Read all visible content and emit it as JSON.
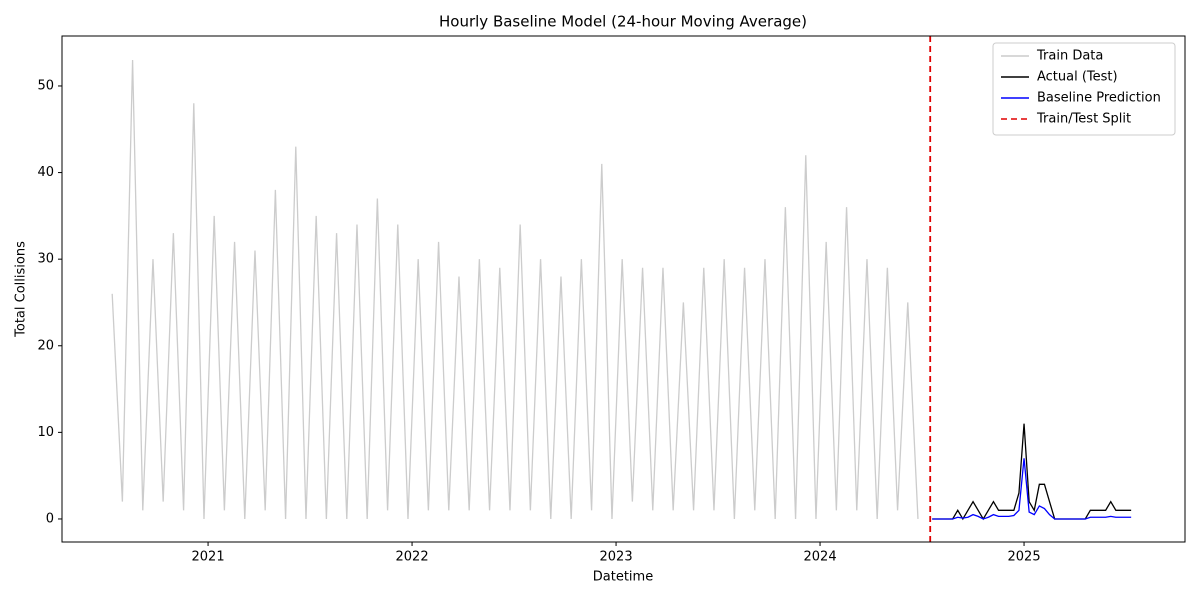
{
  "chart_data": {
    "type": "line",
    "title": "Hourly Baseline Model (24-hour Moving Average)",
    "x_label": "Datetime",
    "y_label": "Total Collisions",
    "xlim": [
      2020.284,
      2025.789
    ],
    "xticks": [
      2021,
      2022,
      2023,
      2024,
      2025
    ],
    "ylim": [
      -2.66,
      55.77
    ],
    "yticks": [
      0,
      10,
      20,
      30,
      40,
      50
    ],
    "grid": false,
    "legend": "upper right",
    "series": [
      {
        "name": "Train Data",
        "color": "#cccccc",
        "style": "solid",
        "x": [
          2020.53,
          2020.58,
          2020.63,
          2020.68,
          2020.73,
          2020.78,
          2020.83,
          2020.88,
          2020.93,
          2020.98,
          2021.03,
          2021.08,
          2021.13,
          2021.18,
          2021.23,
          2021.28,
          2021.33,
          2021.38,
          2021.43,
          2021.48,
          2021.53,
          2021.58,
          2021.63,
          2021.68,
          2021.73,
          2021.78,
          2021.83,
          2021.88,
          2021.93,
          2021.98,
          2022.03,
          2022.08,
          2022.13,
          2022.18,
          2022.23,
          2022.28,
          2022.33,
          2022.38,
          2022.43,
          2022.48,
          2022.53,
          2022.58,
          2022.63,
          2022.68,
          2022.73,
          2022.78,
          2022.83,
          2022.88,
          2022.93,
          2022.98,
          2023.03,
          2023.08,
          2023.13,
          2023.18,
          2023.23,
          2023.28,
          2023.33,
          2023.38,
          2023.43,
          2023.48,
          2023.53,
          2023.58,
          2023.63,
          2023.68,
          2023.73,
          2023.78,
          2023.83,
          2023.88,
          2023.93,
          2023.98,
          2024.03,
          2024.08,
          2024.13,
          2024.18,
          2024.23,
          2024.28,
          2024.33,
          2024.38,
          2024.43,
          2024.48
        ],
        "values": [
          26,
          2,
          53,
          1,
          30,
          2,
          33,
          1,
          48,
          0,
          35,
          1,
          32,
          0,
          31,
          1,
          38,
          0,
          43,
          0,
          35,
          0,
          33,
          0,
          34,
          0,
          37,
          1,
          34,
          0,
          30,
          1,
          32,
          1,
          28,
          1,
          30,
          1,
          29,
          1,
          34,
          1,
          30,
          0,
          28,
          0,
          30,
          1,
          41,
          0,
          30,
          2,
          29,
          1,
          29,
          1,
          25,
          1,
          29,
          1,
          30,
          0,
          29,
          1,
          30,
          0,
          36,
          0,
          42,
          0,
          32,
          1,
          36,
          1,
          30,
          0,
          29,
          1,
          25,
          0
        ]
      },
      {
        "name": "Actual (Test)",
        "color": "#000000",
        "style": "solid",
        "x": [
          2024.55,
          2024.575,
          2024.6,
          2024.625,
          2024.65,
          2024.675,
          2024.7,
          2024.725,
          2024.75,
          2024.775,
          2024.8,
          2024.825,
          2024.85,
          2024.875,
          2024.9,
          2024.925,
          2024.95,
          2024.975,
          2025.0,
          2025.025,
          2025.05,
          2025.075,
          2025.1,
          2025.125,
          2025.15,
          2025.175,
          2025.2,
          2025.225,
          2025.25,
          2025.275,
          2025.3,
          2025.325,
          2025.35,
          2025.375,
          2025.4,
          2025.425,
          2025.45,
          2025.475,
          2025.5,
          2025.525
        ],
        "values": [
          0,
          0,
          0,
          0,
          0,
          1,
          0,
          1,
          2,
          1,
          0,
          1,
          2,
          1,
          1,
          1,
          1,
          3,
          11,
          2,
          1,
          4,
          4,
          2,
          0,
          0,
          0,
          0,
          0,
          0,
          0,
          1,
          1,
          1,
          1,
          2,
          1,
          1,
          1,
          1
        ]
      },
      {
        "name": "Baseline Prediction",
        "color": "#0000ff",
        "style": "solid",
        "x": [
          2024.55,
          2024.575,
          2024.6,
          2024.625,
          2024.65,
          2024.675,
          2024.7,
          2024.725,
          2024.75,
          2024.775,
          2024.8,
          2024.825,
          2024.85,
          2024.875,
          2024.9,
          2024.925,
          2024.95,
          2024.975,
          2025.0,
          2025.025,
          2025.05,
          2025.075,
          2025.1,
          2025.125,
          2025.15,
          2025.175,
          2025.2,
          2025.225,
          2025.25,
          2025.275,
          2025.3,
          2025.325,
          2025.35,
          2025.375,
          2025.4,
          2025.425,
          2025.45,
          2025.475,
          2025.5,
          2025.525
        ],
        "values": [
          0,
          0,
          0,
          0,
          0,
          0.2,
          0.1,
          0.2,
          0.5,
          0.3,
          0,
          0.2,
          0.5,
          0.3,
          0.3,
          0.3,
          0.4,
          1,
          7,
          0.8,
          0.5,
          1.5,
          1.2,
          0.5,
          0,
          0,
          0,
          0,
          0,
          0,
          0,
          0.2,
          0.2,
          0.2,
          0.2,
          0.3,
          0.2,
          0.2,
          0.2,
          0.2
        ]
      }
    ],
    "vlines": [
      {
        "name": "Train/Test Split",
        "x": 2024.54,
        "color": "#e00000",
        "style": "dashed"
      }
    ]
  }
}
